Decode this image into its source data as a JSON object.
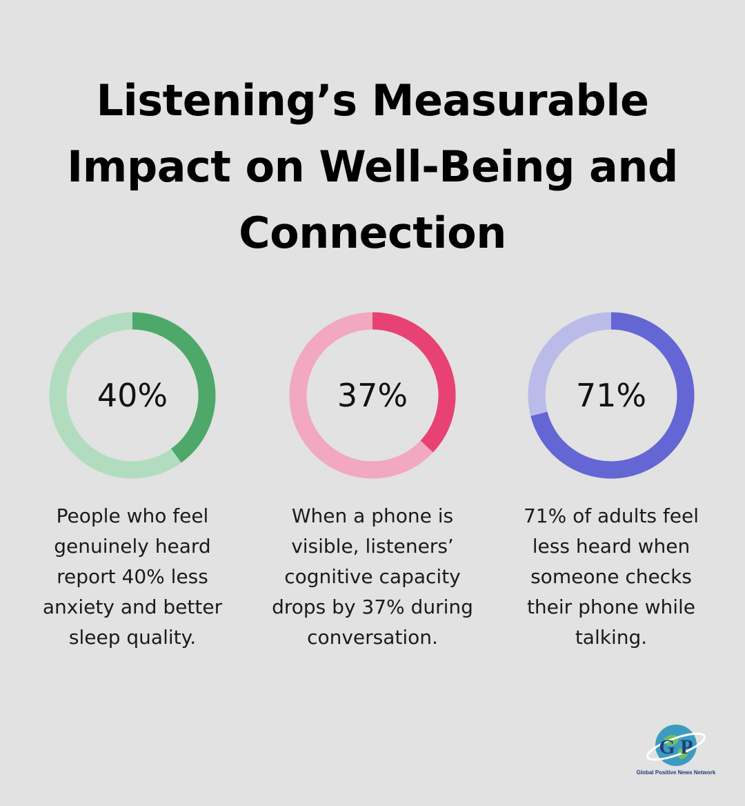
{
  "title": "Listening’s Measurable Impact on Well-Being and Connection",
  "chart_data": {
    "type": "donut",
    "items": [
      {
        "value": 40,
        "label": "40%",
        "description": "People who feel genuinely heard report 40% less anxiety and better sleep quality.",
        "color": "#4ea86a",
        "track_color": "#b2dcbf"
      },
      {
        "value": 37,
        "label": "37%",
        "description": "When a phone is visible, listeners’ cognitive capacity drops by 37% during conversation.",
        "color": "#e84274",
        "track_color": "#f1a8c0"
      },
      {
        "value": 71,
        "label": "71%",
        "description": "71% of adults feel less heard when someone checks their phone while talking.",
        "color": "#6366d3",
        "track_color": "#babbe9"
      }
    ]
  },
  "logo": {
    "letters": "G P",
    "caption": "Global Positive News Network",
    "color": "#1f3f78"
  }
}
